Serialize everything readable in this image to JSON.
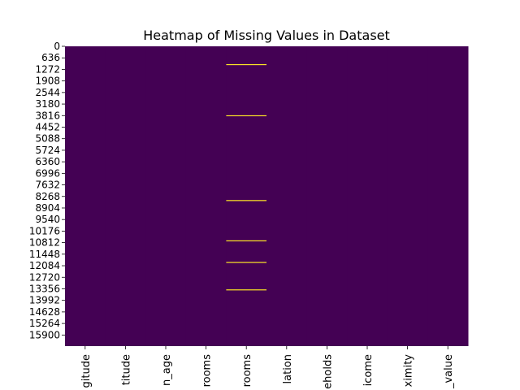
{
  "chart_data": {
    "type": "heatmap",
    "title": "Heatmap of Missing Values in Dataset",
    "xlabel": "",
    "ylabel": "",
    "row_count": 16512,
    "columns": [
      "longitude",
      "latitude",
      "housing_median_age",
      "total_rooms",
      "total_bedrooms",
      "population",
      "households",
      "median_income",
      "ocean_proximity",
      "median_house_value"
    ],
    "x_tick_labels": [
      "gitude",
      "titude",
      "n_age",
      "rooms",
      "rooms",
      "lation",
      "eholds",
      "icome",
      "ximity",
      "_value"
    ],
    "y_tick_labels": [
      "0",
      "636",
      "1272",
      "1908",
      "2544",
      "3180",
      "3816",
      "4452",
      "5088",
      "5724",
      "6360",
      "6996",
      "7632",
      "8268",
      "8904",
      "9540",
      "10176",
      "10812",
      "11448",
      "12084",
      "12720",
      "13356",
      "13992",
      "14628",
      "15264",
      "15900"
    ],
    "y_tick_step": 636,
    "colorbar": false,
    "colors": {
      "present": "#440154",
      "missing": "#fde725"
    },
    "missing": [
      {
        "column": "total_bedrooms",
        "rows": [
          1005,
          3820,
          8490,
          10710,
          11900,
          13410
        ]
      }
    ]
  }
}
